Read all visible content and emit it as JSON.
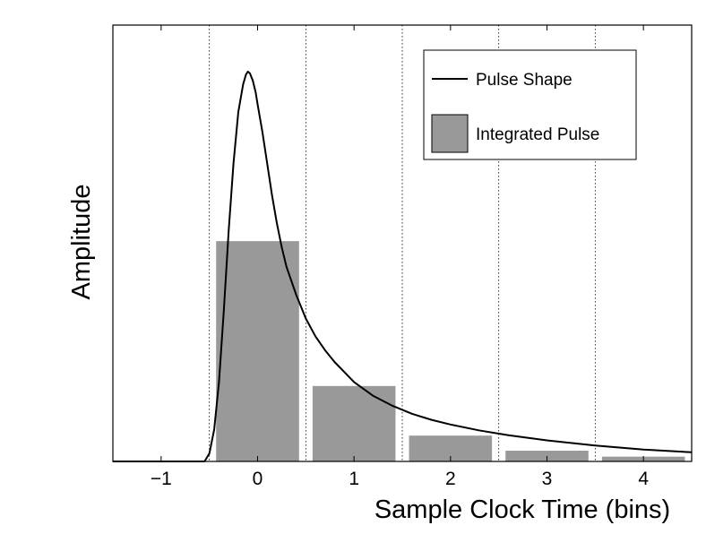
{
  "chart_data": {
    "type": "bar",
    "xlabel": "Sample Clock Time (bins)",
    "ylabel": "Amplitude",
    "xlim": [
      -1.5,
      4.5
    ],
    "ylim": [
      0,
      1.0
    ],
    "grid": "vertical dotted lines at bin boundaries",
    "legend_position": "top-right",
    "x_ticks": [
      {
        "value": -1,
        "label": "−1"
      },
      {
        "value": 0,
        "label": "0"
      },
      {
        "value": 1,
        "label": "1"
      },
      {
        "value": 2,
        "label": "2"
      },
      {
        "value": 3,
        "label": "3"
      },
      {
        "value": 4,
        "label": "4"
      }
    ],
    "bin_edges": [
      -0.5,
      0.5,
      1.5,
      2.5,
      3.5
    ],
    "series": [
      {
        "name": "Integrated Pulse",
        "kind": "bar",
        "color": "#999999",
        "categories": [
          0,
          1,
          2,
          3,
          4
        ],
        "values": [
          0.555,
          0.19,
          0.065,
          0.027,
          0.012
        ]
      },
      {
        "name": "Pulse Shape",
        "kind": "line",
        "color": "#000000",
        "x": [
          -1.5,
          -0.55,
          -0.5,
          -0.45,
          -0.4,
          -0.35,
          -0.3,
          -0.25,
          -0.2,
          -0.15,
          -0.12,
          -0.1,
          -0.08,
          -0.05,
          -0.02,
          0.0,
          0.05,
          0.1,
          0.15,
          0.2,
          0.25,
          0.3,
          0.4,
          0.5,
          0.6,
          0.7,
          0.8,
          1.0,
          1.2,
          1.4,
          1.6,
          1.8,
          2.0,
          2.3,
          2.6,
          3.0,
          3.5,
          4.0,
          4.5
        ],
        "y": [
          0.0,
          0.0,
          0.02,
          0.08,
          0.2,
          0.38,
          0.58,
          0.75,
          0.88,
          0.95,
          0.975,
          0.982,
          0.978,
          0.96,
          0.93,
          0.9,
          0.83,
          0.75,
          0.67,
          0.6,
          0.54,
          0.49,
          0.42,
          0.36,
          0.315,
          0.28,
          0.25,
          0.2,
          0.165,
          0.14,
          0.12,
          0.105,
          0.093,
          0.078,
          0.066,
          0.053,
          0.04,
          0.03,
          0.023
        ]
      }
    ]
  }
}
